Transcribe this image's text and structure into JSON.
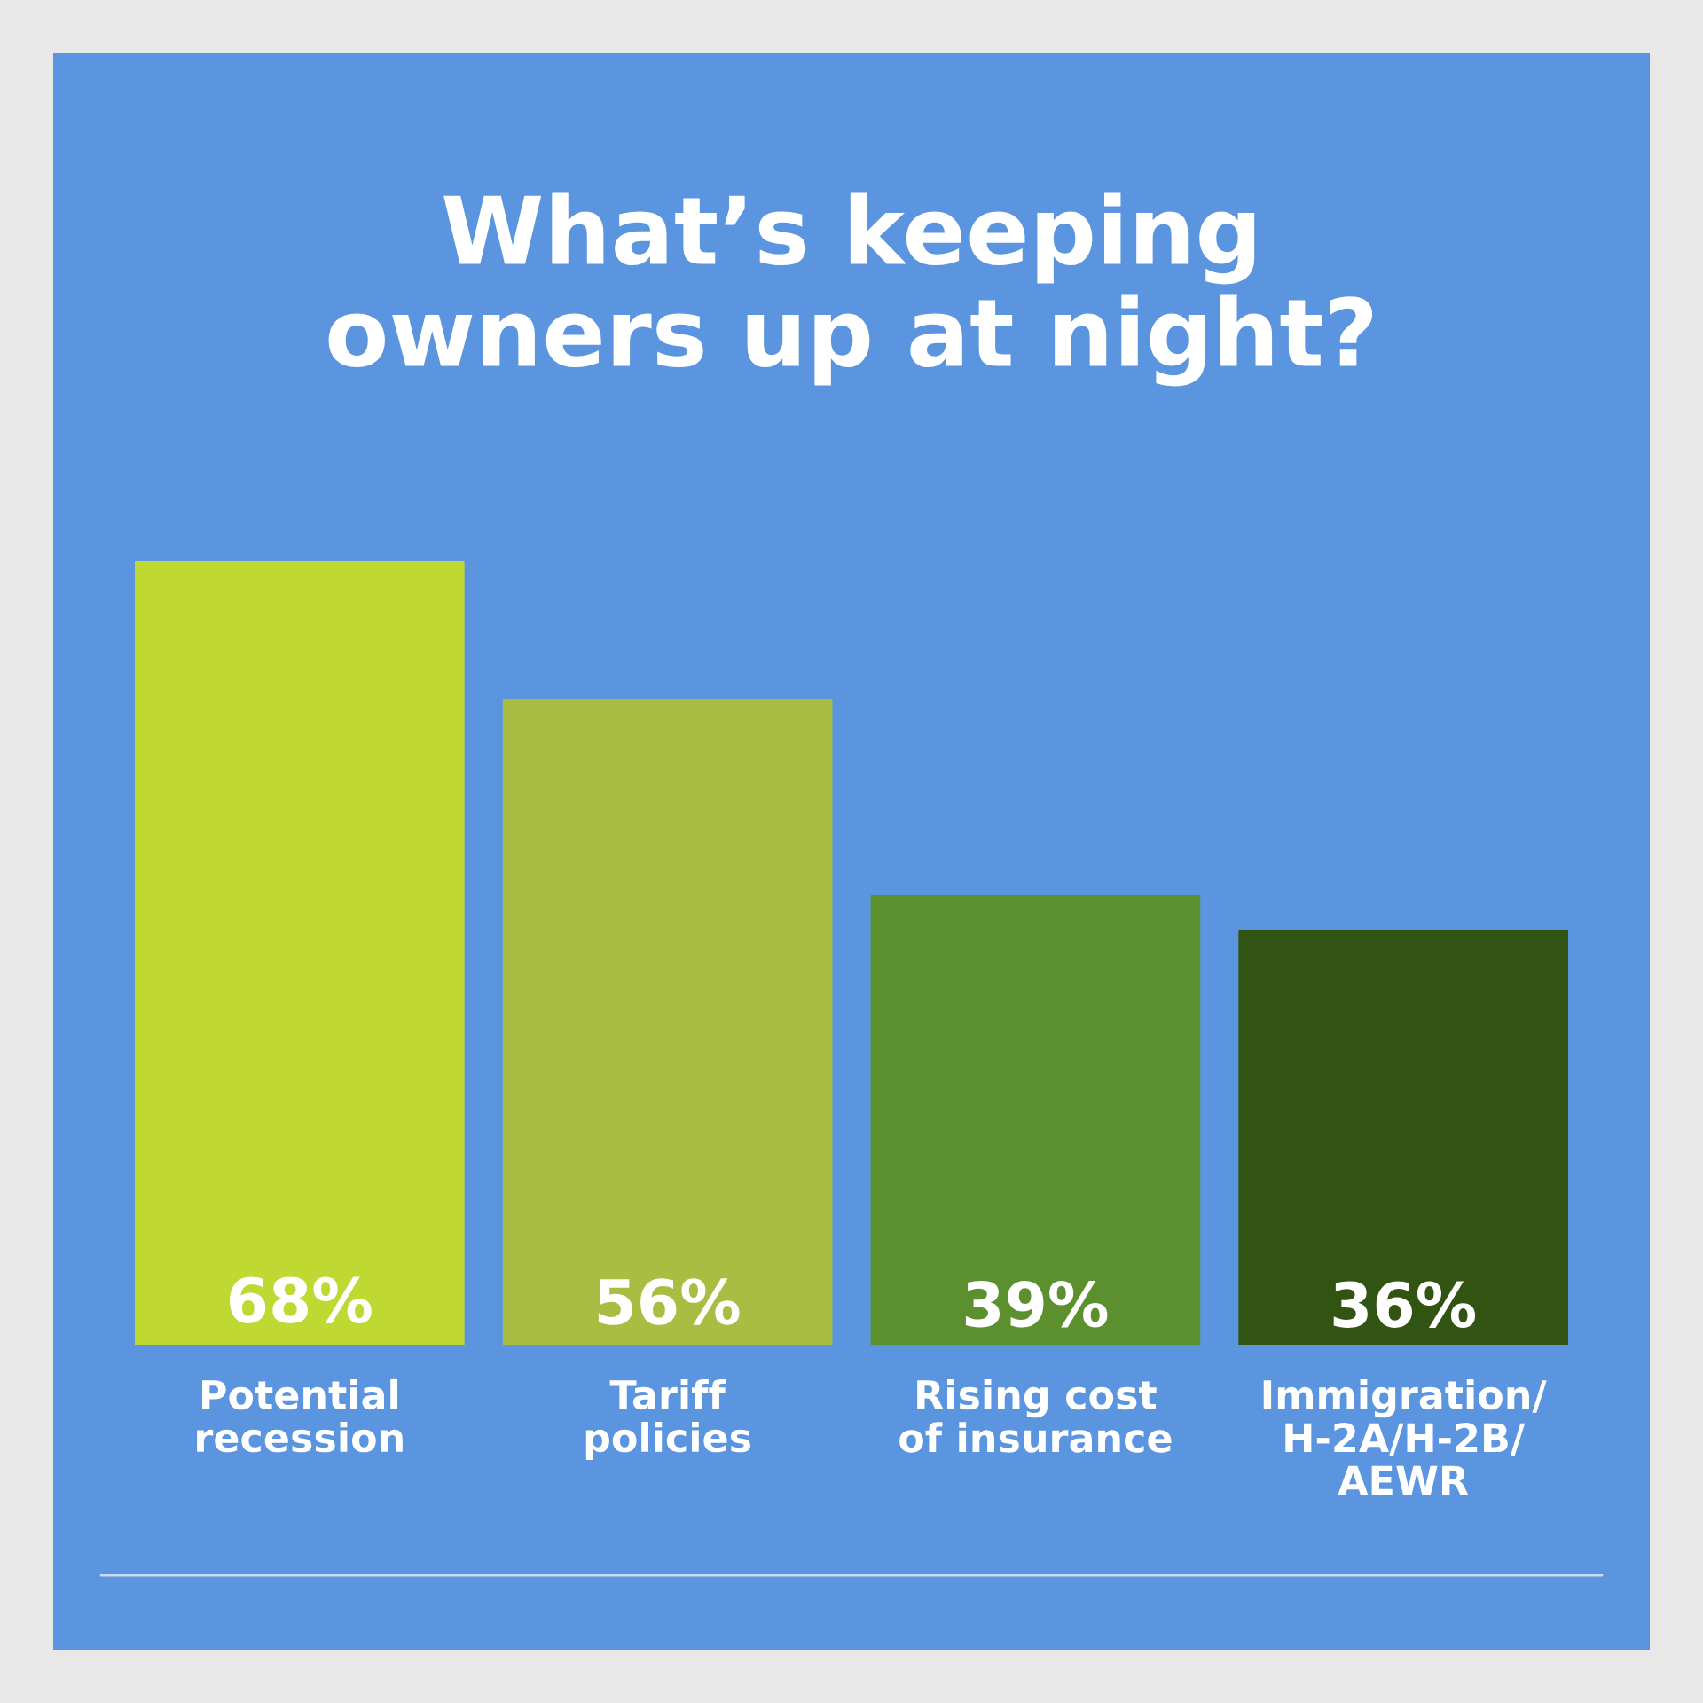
{
  "chart_data": {
    "type": "bar",
    "title": "What’s keeping\nowners up at night?",
    "categories": [
      "Potential\nrecession",
      "Tariff\npolicies",
      "Rising cost\nof insurance",
      "Immigration/\nH-2A/H-2B/\nAEWR"
    ],
    "values": [
      68,
      56,
      39,
      36
    ],
    "colors": [
      "#bfd832",
      "#a8bd42",
      "#5c8f2e",
      "#325412"
    ],
    "value_labels": [
      "68%",
      "56%",
      "39%",
      "36%"
    ],
    "grid": false,
    "legend": false
  }
}
